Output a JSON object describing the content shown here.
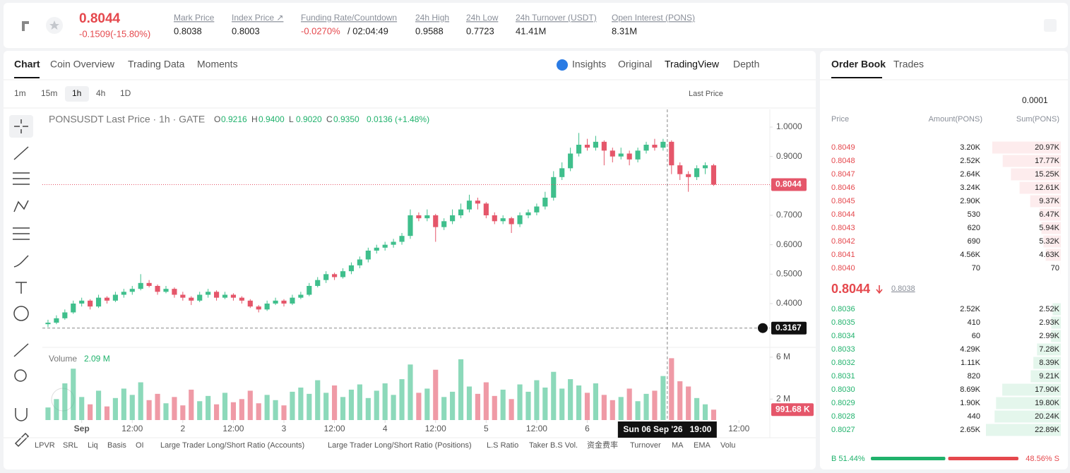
{
  "header": {
    "price": "0.8044",
    "change": "-0.1509(-15.80%)",
    "stats": [
      {
        "label": "Mark Price",
        "value": "0.8038"
      },
      {
        "label": "Index Price ↗",
        "value": "0.8003"
      },
      {
        "label": "Funding Rate/Countdown",
        "value": "-0.0270%",
        "extra": "/ 02:04:49"
      },
      {
        "label": "24h High",
        "value": "0.9588"
      },
      {
        "label": "24h Low",
        "value": "0.7723"
      },
      {
        "label": "24h Turnover (USDT)",
        "value": "41.41M"
      },
      {
        "label": "Open Interest (PONS)",
        "value": "8.31M"
      }
    ]
  },
  "tabs": [
    "Chart",
    "Coin Overview",
    "Trading Data",
    "Moments"
  ],
  "views": [
    "Insights",
    "Original",
    "TradingView",
    "Depth"
  ],
  "intervals": [
    "1m",
    "15m",
    "1h",
    "4h",
    "1D"
  ],
  "price_type": "Last Price",
  "chart_data": {
    "type": "candlestick",
    "legend": {
      "symbol": "PONSUSDT Last Price · 1h · GATE",
      "items": [
        {
          "key": "O",
          "value": "0.9216"
        },
        {
          "key": "H",
          "value": "0.9400"
        },
        {
          "key": "L",
          "value": "0.9020"
        },
        {
          "key": "C",
          "value": "0.9350"
        }
      ],
      "change": "0.0136 (+1.48%)"
    },
    "up_color": "#3fbf8c",
    "down_color": "#e5566a",
    "ylim": [
      0.2512,
      1.06
    ],
    "yticks": [
      {
        "value": 1,
        "label": "1.0000"
      },
      {
        "value": 0.9,
        "label": "0.9000"
      },
      {
        "value": 0.8,
        "label": "0.8000"
      },
      {
        "value": 0.7,
        "label": "0.7000"
      },
      {
        "value": 0.6,
        "label": "0.6000"
      },
      {
        "value": 0.5,
        "label": "0.5000"
      },
      {
        "value": 0.4,
        "label": "0.4000"
      }
    ],
    "last_price": 0.8044,
    "xlim": [
      -0.5,
      85.5
    ],
    "xticks": [
      {
        "value": 4,
        "label": "Sep"
      },
      {
        "value": 10,
        "label": "12:00"
      },
      {
        "value": 16,
        "label": "2"
      },
      {
        "value": 22,
        "label": "12:00"
      },
      {
        "value": 28,
        "label": "3"
      },
      {
        "value": 34,
        "label": "12:00"
      },
      {
        "value": 40,
        "label": "4"
      },
      {
        "value": 46,
        "label": "12:00"
      },
      {
        "value": 52,
        "label": "5"
      },
      {
        "value": 58,
        "label": "12:00"
      },
      {
        "value": 64,
        "label": "6"
      },
      {
        "value": 82,
        "label": "12:00"
      }
    ],
    "crosshair": {
      "x": 73.5,
      "y": 0.3167,
      "label": "Sun 06 Sep '26   19:00"
    },
    "ohlc": [
      [
        0.33,
        0.345,
        0.32,
        0.335
      ],
      [
        0.335,
        0.36,
        0.33,
        0.35
      ],
      [
        0.35,
        0.38,
        0.345,
        0.37
      ],
      [
        0.37,
        0.41,
        0.365,
        0.4
      ],
      [
        0.4,
        0.42,
        0.39,
        0.41
      ],
      [
        0.41,
        0.415,
        0.38,
        0.39
      ],
      [
        0.39,
        0.43,
        0.385,
        0.42
      ],
      [
        0.42,
        0.425,
        0.4,
        0.41
      ],
      [
        0.41,
        0.44,
        0.405,
        0.43
      ],
      [
        0.43,
        0.45,
        0.42,
        0.44
      ],
      [
        0.44,
        0.46,
        0.43,
        0.45
      ],
      [
        0.45,
        0.5,
        0.445,
        0.47
      ],
      [
        0.47,
        0.48,
        0.455,
        0.46
      ],
      [
        0.46,
        0.465,
        0.43,
        0.44
      ],
      [
        0.44,
        0.46,
        0.435,
        0.45
      ],
      [
        0.45,
        0.455,
        0.42,
        0.43
      ],
      [
        0.43,
        0.44,
        0.41,
        0.42
      ],
      [
        0.42,
        0.425,
        0.395,
        0.41
      ],
      [
        0.41,
        0.44,
        0.405,
        0.43
      ],
      [
        0.43,
        0.45,
        0.42,
        0.44
      ],
      [
        0.44,
        0.445,
        0.41,
        0.42
      ],
      [
        0.42,
        0.44,
        0.415,
        0.43
      ],
      [
        0.43,
        0.435,
        0.41,
        0.42
      ],
      [
        0.42,
        0.425,
        0.4,
        0.41
      ],
      [
        0.41,
        0.415,
        0.385,
        0.39
      ],
      [
        0.39,
        0.395,
        0.37,
        0.38
      ],
      [
        0.38,
        0.41,
        0.375,
        0.4
      ],
      [
        0.4,
        0.42,
        0.395,
        0.41
      ],
      [
        0.41,
        0.415,
        0.39,
        0.4
      ],
      [
        0.4,
        0.43,
        0.395,
        0.42
      ],
      [
        0.42,
        0.44,
        0.415,
        0.43
      ],
      [
        0.43,
        0.47,
        0.425,
        0.46
      ],
      [
        0.46,
        0.49,
        0.455,
        0.48
      ],
      [
        0.48,
        0.51,
        0.47,
        0.5
      ],
      [
        0.5,
        0.505,
        0.48,
        0.49
      ],
      [
        0.49,
        0.52,
        0.485,
        0.51
      ],
      [
        0.51,
        0.54,
        0.5,
        0.53
      ],
      [
        0.53,
        0.56,
        0.52,
        0.55
      ],
      [
        0.55,
        0.59,
        0.54,
        0.58
      ],
      [
        0.58,
        0.6,
        0.57,
        0.59
      ],
      [
        0.59,
        0.61,
        0.58,
        0.6
      ],
      [
        0.6,
        0.62,
        0.59,
        0.61
      ],
      [
        0.61,
        0.64,
        0.6,
        0.63
      ],
      [
        0.63,
        0.72,
        0.62,
        0.7
      ],
      [
        0.7,
        0.71,
        0.68,
        0.69
      ],
      [
        0.69,
        0.72,
        0.68,
        0.7
      ],
      [
        0.7,
        0.705,
        0.61,
        0.66
      ],
      [
        0.66,
        0.69,
        0.65,
        0.68
      ],
      [
        0.68,
        0.72,
        0.67,
        0.7
      ],
      [
        0.7,
        0.74,
        0.69,
        0.72
      ],
      [
        0.72,
        0.77,
        0.71,
        0.75
      ],
      [
        0.75,
        0.76,
        0.72,
        0.74
      ],
      [
        0.74,
        0.745,
        0.69,
        0.7
      ],
      [
        0.7,
        0.71,
        0.67,
        0.68
      ],
      [
        0.68,
        0.7,
        0.67,
        0.69
      ],
      [
        0.69,
        0.695,
        0.64,
        0.67
      ],
      [
        0.67,
        0.71,
        0.66,
        0.7
      ],
      [
        0.7,
        0.72,
        0.69,
        0.71
      ],
      [
        0.71,
        0.74,
        0.7,
        0.73
      ],
      [
        0.73,
        0.78,
        0.72,
        0.76
      ],
      [
        0.76,
        0.85,
        0.75,
        0.83
      ],
      [
        0.83,
        0.88,
        0.82,
        0.86
      ],
      [
        0.86,
        0.93,
        0.85,
        0.91
      ],
      [
        0.91,
        0.98,
        0.9,
        0.94
      ],
      [
        0.94,
        0.96,
        0.92,
        0.93
      ],
      [
        0.93,
        0.97,
        0.92,
        0.95
      ],
      [
        0.95,
        0.955,
        0.87,
        0.92
      ],
      [
        0.92,
        0.93,
        0.88,
        0.9
      ],
      [
        0.9,
        0.93,
        0.89,
        0.91
      ],
      [
        0.91,
        0.92,
        0.87,
        0.89
      ],
      [
        0.89,
        0.93,
        0.88,
        0.92
      ],
      [
        0.92,
        0.95,
        0.91,
        0.94
      ],
      [
        0.94,
        0.96,
        0.92,
        0.93
      ],
      [
        0.93,
        0.96,
        0.92,
        0.95
      ],
      [
        0.95,
        0.955,
        0.84,
        0.87
      ],
      [
        0.87,
        0.88,
        0.82,
        0.84
      ],
      [
        0.84,
        0.85,
        0.78,
        0.83
      ],
      [
        0.83,
        0.87,
        0.82,
        0.86
      ],
      [
        0.86,
        0.88,
        0.84,
        0.87
      ],
      [
        0.87,
        0.875,
        0.8,
        0.8044
      ]
    ],
    "volume": {
      "title": "Volume",
      "current": "2.09 M",
      "ylim": [
        0,
        6.6
      ],
      "yticks": [
        {
          "value": 6,
          "label": "6 M"
        },
        {
          "value": 2,
          "label": "2 M"
        }
      ],
      "values": [
        1.2,
        2.0,
        3.5,
        4.9,
        2.2,
        1.5,
        2.8,
        1.3,
        2.1,
        3.0,
        2.4,
        3.6,
        1.9,
        2.5,
        1.6,
        2.2,
        1.4,
        2.9,
        1.8,
        2.3,
        1.5,
        2.6,
        1.7,
        2.0,
        2.8,
        1.6,
        2.4,
        1.9,
        1.4,
        2.7,
        3.1,
        2.5,
        3.8,
        2.6,
        3.3,
        2.2,
        2.9,
        3.4,
        2.1,
        2.8,
        3.5,
        2.4,
        3.9,
        5.3,
        2.6,
        3.0,
        4.8,
        2.2,
        2.7,
        5.8,
        3.2,
        2.5,
        3.6,
        2.3,
        2.9,
        2.0,
        3.4,
        2.7,
        3.8,
        3.1,
        4.6,
        3.0,
        3.9,
        3.3,
        2.6,
        3.5,
        2.4,
        1.9,
        2.2,
        3.0,
        1.8,
        2.5,
        2.8,
        4.2,
        5.9,
        3.7,
        3.2,
        2.1,
        1.5,
        0.99168
      ],
      "last_label": "991.68 K"
    }
  },
  "indicators": [
    "LPVR",
    "SRL",
    "Liq",
    "Basis",
    "OI",
    "Large Trader Long/Short Ratio (Accounts)",
    "Large Trader Long/Short Ratio (Positions)",
    "L.S Ratio",
    "Taker B.S Vol.",
    "资金费率",
    "Turnover",
    "MA",
    "EMA",
    "Volu"
  ],
  "order_book": {
    "tabs": [
      "Order Book",
      "Trades"
    ],
    "precision": "0.0001",
    "columns": [
      "Price",
      "Amount(PONS)",
      "Sum(PONS)"
    ],
    "asks": {
      "prices": [
        "0.8049",
        "0.8048",
        "0.8047",
        "0.8046",
        "0.8045",
        "0.8044",
        "0.8043",
        "0.8042",
        "0.8041",
        "0.8040"
      ],
      "amounts": [
        "3.20K",
        "2.52K",
        "2.64K",
        "3.24K",
        "2.90K",
        "530",
        "620",
        "690",
        "4.56K",
        "70"
      ],
      "sums": [
        20970,
        17770,
        15250,
        12610,
        9370,
        6470,
        5940,
        5320,
        4630,
        70
      ],
      "sum_labels": [
        "20.97K",
        "17.77K",
        "15.25K",
        "12.61K",
        "9.37K",
        "6.47K",
        "5.94K",
        "5.32K",
        "4.63K",
        "70"
      ]
    },
    "mid": {
      "price": "0.8044",
      "mark": "0.8038"
    },
    "bids": {
      "prices": [
        "0.8036",
        "0.8035",
        "0.8034",
        "0.8033",
        "0.8032",
        "0.8031",
        "0.8030",
        "0.8029",
        "0.8028",
        "0.8027"
      ],
      "amounts": [
        "2.52K",
        "410",
        "60",
        "4.29K",
        "1.11K",
        "820",
        "8.69K",
        "1.90K",
        "440",
        "2.65K"
      ],
      "sums": [
        2520,
        2930,
        2990,
        7280,
        8390,
        9210,
        17900,
        19800,
        20240,
        22890
      ],
      "sum_labels": [
        "2.52K",
        "2.93K",
        "2.99K",
        "7.28K",
        "8.39K",
        "9.21K",
        "17.90K",
        "19.80K",
        "20.24K",
        "22.89K"
      ]
    },
    "ratio": {
      "buy": 51.44,
      "sell": 48.56,
      "buy_label": "B 51.44%",
      "sell_label": "48.56% S"
    }
  }
}
